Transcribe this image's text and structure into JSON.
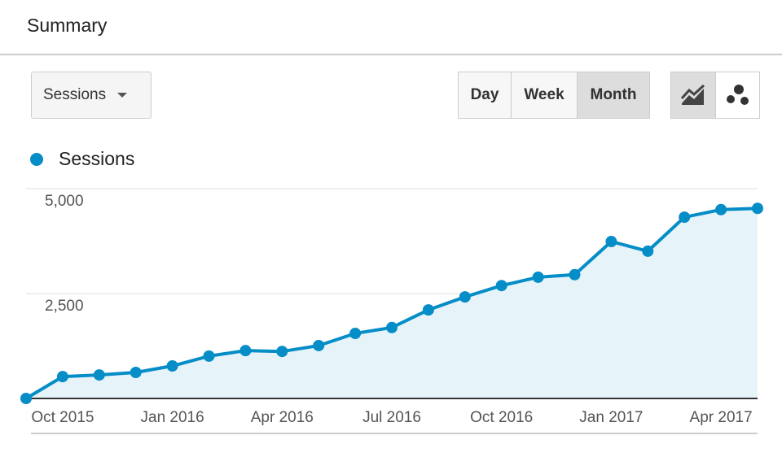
{
  "header": {
    "title": "Summary"
  },
  "controls": {
    "metric": "Sessions",
    "periods": [
      "Day",
      "Week",
      "Month"
    ],
    "active_period": 2
  },
  "chart_data": {
    "type": "line",
    "categories": [
      null,
      "Oct 2015",
      null,
      null,
      "Jan 2016",
      null,
      null,
      "Apr 2016",
      null,
      null,
      "Jul 2016",
      null,
      null,
      "Oct 2016",
      null,
      null,
      "Jan 2017",
      null,
      null,
      "Apr 2017",
      null
    ],
    "series": [
      {
        "name": "Sessions",
        "color": "#058dc7",
        "values": [
          0,
          520,
          560,
          620,
          775,
          1010,
          1140,
          1120,
          1260,
          1550,
          1690,
          2110,
          2420,
          2690,
          2890,
          2950,
          3740,
          3510,
          4320,
          4500,
          4530
        ]
      }
    ],
    "ylim": [
      0,
      5000
    ],
    "yticks": [
      {
        "value": 2500,
        "label": "2,500"
      },
      {
        "value": 5000,
        "label": "5,000"
      }
    ],
    "grid": true,
    "area": true,
    "area_color": "#e6f4fa"
  }
}
